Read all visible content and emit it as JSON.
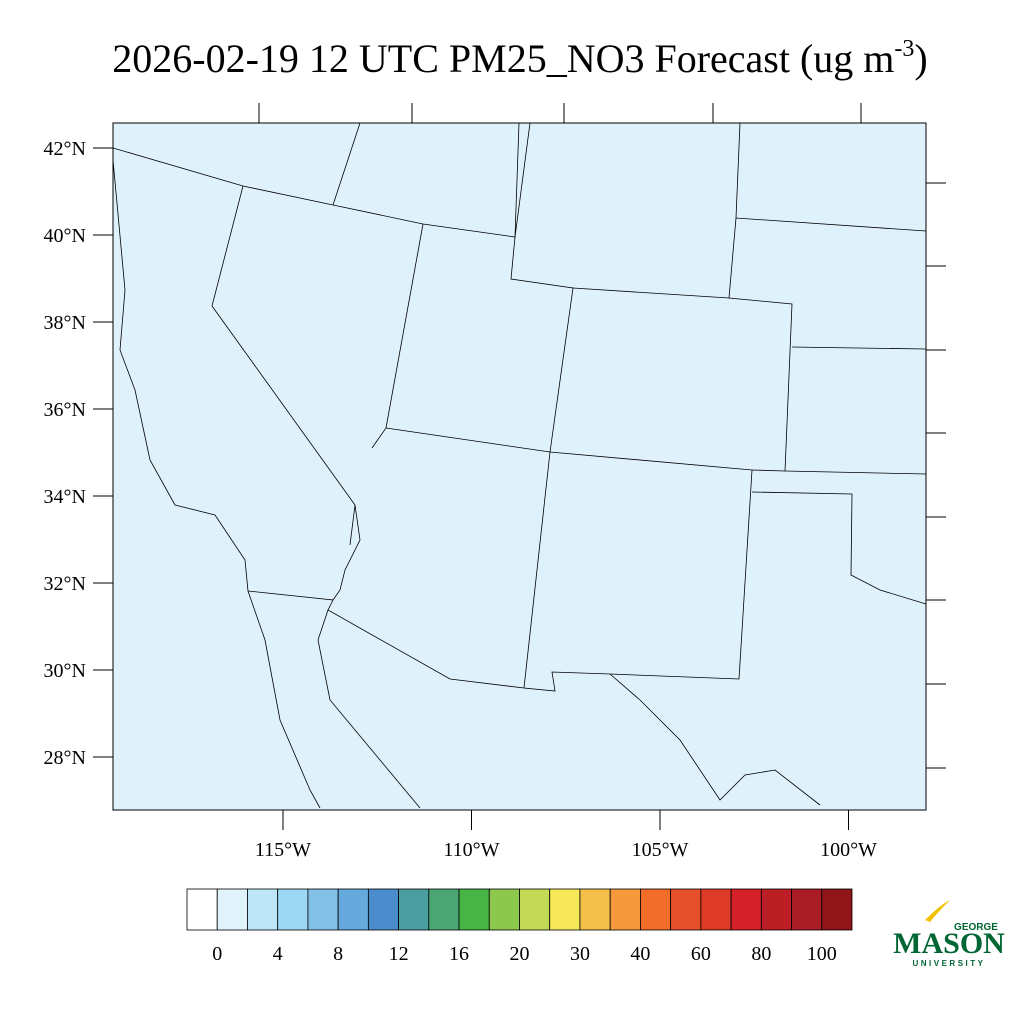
{
  "title": {
    "text": "2026-02-19 12 UTC PM25_NO3 Forecast (ug m",
    "superscript": "-3",
    "close": ")"
  },
  "map": {
    "lat_labels": [
      "42°N",
      "40°N",
      "38°N",
      "36°N",
      "34°N",
      "32°N",
      "30°N",
      "28°N"
    ],
    "lon_labels": [
      "115°W",
      "110°W",
      "105°W",
      "100°W"
    ],
    "fill": "#dff2fb"
  },
  "colorbar": {
    "labels": [
      "0",
      "4",
      "8",
      "12",
      "16",
      "20",
      "30",
      "40",
      "60",
      "80",
      "100"
    ],
    "colors": [
      "#ffffff",
      "#e0f3fb",
      "#bfe6f7",
      "#9dd8f3",
      "#82c0e6",
      "#66a9dd",
      "#4a8ccc",
      "#4a9ea0",
      "#4ba673",
      "#47b545",
      "#8cc84b",
      "#c4d955",
      "#f7e85a",
      "#f5c04a",
      "#f5993c",
      "#f26c2a",
      "#e5502a",
      "#de3a28",
      "#d42029",
      "#bb1e25",
      "#a81d23",
      "#8f1519"
    ]
  },
  "logo": {
    "top": "GEORGE",
    "main": "MASON",
    "bottom": "UNIVERSITY"
  }
}
